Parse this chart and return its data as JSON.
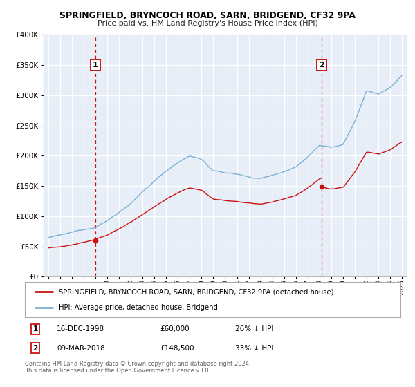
{
  "title": "SPRINGFIELD, BRYNCOCH ROAD, SARN, BRIDGEND, CF32 9PA",
  "subtitle": "Price paid vs. HM Land Registry's House Price Index (HPI)",
  "legend_label_red": "SPRINGFIELD, BRYNCOCH ROAD, SARN, BRIDGEND, CF32 9PA (detached house)",
  "legend_label_blue": "HPI: Average price, detached house, Bridgend",
  "annotation1_label": "1",
  "annotation1_date": "16-DEC-1998",
  "annotation1_price": "£60,000",
  "annotation1_hpi": "26% ↓ HPI",
  "annotation1_year": 1999.0,
  "annotation1_value": 60000,
  "annotation2_label": "2",
  "annotation2_date": "09-MAR-2018",
  "annotation2_price": "£148,500",
  "annotation2_hpi": "33% ↓ HPI",
  "annotation2_year": 2018.2,
  "annotation2_value": 148500,
  "footer": "Contains HM Land Registry data © Crown copyright and database right 2024.\nThis data is licensed under the Open Government Licence v3.0.",
  "ylim": [
    0,
    400000
  ],
  "xlim_start": 1994.6,
  "xlim_end": 2025.4,
  "bg_color": "#ffffff",
  "plot_bg_color": "#e8eef8",
  "grid_color": "#ffffff",
  "red_color": "#cc1111",
  "blue_color": "#7ab0d4"
}
